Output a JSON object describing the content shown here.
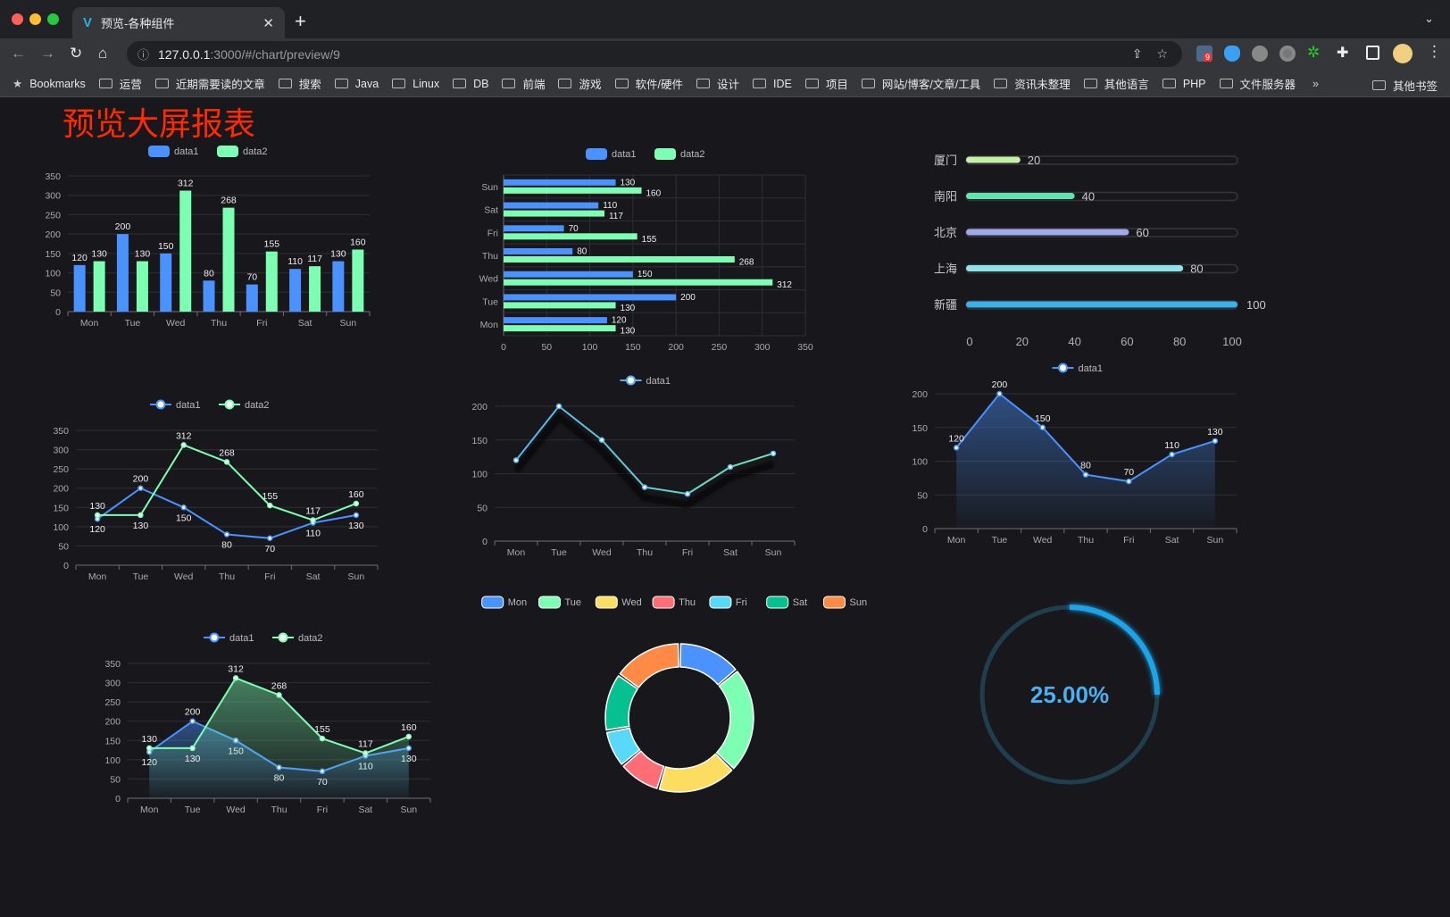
{
  "browser": {
    "tab_title": "预览-各种组件",
    "url_host": "127.0.0.1",
    "url_rest": ":3000/#/chart/preview/9",
    "bookmarks_label": "Bookmarks",
    "bookmarks": [
      "运营",
      "近期需要读的文章",
      "搜索",
      "Java",
      "Linux",
      "DB",
      "前端",
      "游戏",
      "软件/硬件",
      "设计",
      "IDE",
      "项目",
      "网站/博客/文章/工具",
      "资讯未整理",
      "其他语言",
      "PHP",
      "文件服务器"
    ],
    "more": "»",
    "other_bookmarks": "其他书签",
    "ext_badge": "9"
  },
  "page": {
    "title": "预览大屏报表",
    "title_color": "#ff2a00"
  },
  "chart_data": [
    {
      "type": "bar",
      "orientation": "vertical",
      "categories": [
        "Mon",
        "Tue",
        "Wed",
        "Thu",
        "Fri",
        "Sat",
        "Sun"
      ],
      "series": [
        {
          "name": "data1",
          "values": [
            120,
            200,
            150,
            80,
            70,
            110,
            130
          ],
          "color": "#4992ff"
        },
        {
          "name": "data2",
          "values": [
            130,
            130,
            312,
            268,
            155,
            117,
            160
          ],
          "color": "#7cffb2"
        }
      ],
      "ylim": [
        0,
        350
      ],
      "ytick_step": 50,
      "legend": "top-center",
      "grid": true,
      "data_labels": true
    },
    {
      "type": "bar",
      "orientation": "horizontal",
      "categories": [
        "Mon",
        "Tue",
        "Wed",
        "Thu",
        "Fri",
        "Sat",
        "Sun"
      ],
      "series": [
        {
          "name": "data1",
          "values": [
            120,
            200,
            150,
            80,
            70,
            110,
            130
          ],
          "color": "#4992ff"
        },
        {
          "name": "data2",
          "values": [
            130,
            130,
            312,
            268,
            155,
            117,
            160
          ],
          "color": "#7cffb2"
        }
      ],
      "xlim": [
        0,
        350
      ],
      "xtick_step": 50,
      "legend": "top-center",
      "grid": true,
      "data_labels": true
    },
    {
      "type": "bar",
      "orientation": "horizontal",
      "style": "progress",
      "categories": [
        "厦门",
        "南阳",
        "北京",
        "上海",
        "新疆"
      ],
      "values": [
        20,
        40,
        60,
        80,
        100
      ],
      "colors": [
        "#c6f0a4",
        "#5ee6b0",
        "#9fa8e8",
        "#8fe3e8",
        "#38b2e8"
      ],
      "xlim": [
        0,
        100
      ],
      "xtick_step": 20,
      "data_labels": true
    },
    {
      "type": "line",
      "categories": [
        "Mon",
        "Tue",
        "Wed",
        "Thu",
        "Fri",
        "Sat",
        "Sun"
      ],
      "series": [
        {
          "name": "data1",
          "values": [
            120,
            200,
            150,
            80,
            70,
            110,
            130
          ],
          "color": "#4992ff"
        },
        {
          "name": "data2",
          "values": [
            130,
            130,
            312,
            268,
            155,
            117,
            160
          ],
          "color": "#7cffb2"
        }
      ],
      "ylim": [
        0,
        350
      ],
      "ytick_step": 50,
      "legend": "top-center",
      "grid": true,
      "data_labels": true
    },
    {
      "type": "line",
      "categories": [
        "Mon",
        "Tue",
        "Wed",
        "Thu",
        "Fri",
        "Sat",
        "Sun"
      ],
      "series": [
        {
          "name": "data1",
          "values": [
            120,
            200,
            150,
            80,
            70,
            110,
            130
          ],
          "color": "#58b0f0",
          "color_end": "#6ee8b0"
        }
      ],
      "ylim": [
        0,
        200
      ],
      "ytick_step": 50,
      "legend": "top-center",
      "grid": true,
      "data_labels": false
    },
    {
      "type": "area",
      "categories": [
        "Mon",
        "Tue",
        "Wed",
        "Thu",
        "Fri",
        "Sat",
        "Sun"
      ],
      "series": [
        {
          "name": "data1",
          "values": [
            120,
            200,
            150,
            80,
            70,
            110,
            130
          ],
          "color": "#4992ff"
        }
      ],
      "ylim": [
        0,
        200
      ],
      "ytick_step": 50,
      "legend": "top-center",
      "grid": true,
      "data_labels": true
    },
    {
      "type": "area",
      "categories": [
        "Mon",
        "Tue",
        "Wed",
        "Thu",
        "Fri",
        "Sat",
        "Sun"
      ],
      "series": [
        {
          "name": "data1",
          "values": [
            120,
            200,
            150,
            80,
            70,
            110,
            130
          ],
          "color": "#4992ff"
        },
        {
          "name": "data2",
          "values": [
            130,
            130,
            312,
            268,
            155,
            117,
            160
          ],
          "color": "#7cffb2"
        }
      ],
      "ylim": [
        0,
        350
      ],
      "ytick_step": 50,
      "legend": "top-center",
      "grid": true,
      "data_labels": true
    },
    {
      "type": "pie",
      "style": "donut",
      "categories": [
        "Mon",
        "Tue",
        "Wed",
        "Thu",
        "Fri",
        "Sat",
        "Sun"
      ],
      "values": [
        120,
        200,
        150,
        80,
        70,
        110,
        130
      ],
      "colors": [
        "#4992ff",
        "#7cffb2",
        "#fddd60",
        "#ff6e76",
        "#58d9f9",
        "#05c091",
        "#ff8a45"
      ],
      "legend": "top-center"
    },
    {
      "type": "gauge",
      "value": 25,
      "max": 100,
      "label": "25.00%",
      "color": "#1aa3e8",
      "track_color": "#1f3f4f"
    }
  ]
}
